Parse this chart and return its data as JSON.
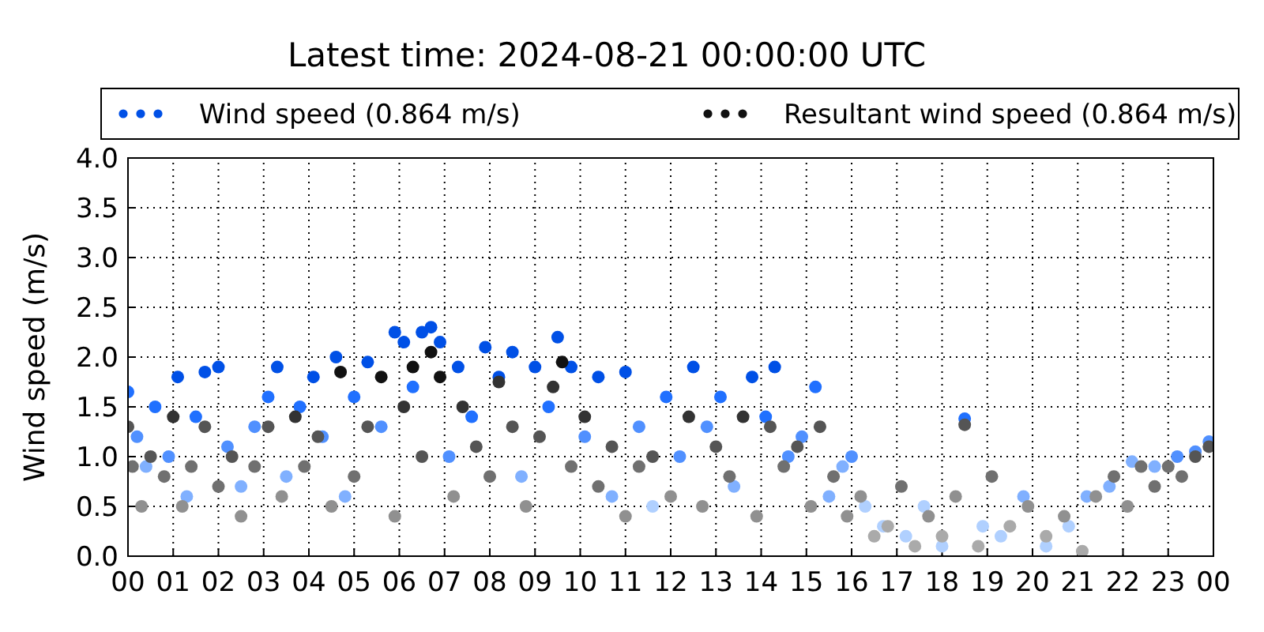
{
  "chart_data": {
    "type": "scatter",
    "title": "Latest time: 2024-08-21 00:00:00 UTC",
    "ylabel": "Wind speed (m/s)",
    "marker": "circle",
    "grid": true,
    "legend": "top",
    "xlim": [
      0,
      24
    ],
    "xticks": [
      {
        "value": 0,
        "label": "00"
      },
      {
        "value": 1,
        "label": "01"
      },
      {
        "value": 2,
        "label": "02"
      },
      {
        "value": 3,
        "label": "03"
      },
      {
        "value": 4,
        "label": "04"
      },
      {
        "value": 5,
        "label": "05"
      },
      {
        "value": 6,
        "label": "06"
      },
      {
        "value": 7,
        "label": "07"
      },
      {
        "value": 8,
        "label": "08"
      },
      {
        "value": 9,
        "label": "09"
      },
      {
        "value": 10,
        "label": "10"
      },
      {
        "value": 11,
        "label": "11"
      },
      {
        "value": 12,
        "label": "12"
      },
      {
        "value": 13,
        "label": "13"
      },
      {
        "value": 14,
        "label": "14"
      },
      {
        "value": 15,
        "label": "15"
      },
      {
        "value": 16,
        "label": "16"
      },
      {
        "value": 17,
        "label": "17"
      },
      {
        "value": 18,
        "label": "18"
      },
      {
        "value": 19,
        "label": "19"
      },
      {
        "value": 20,
        "label": "20"
      },
      {
        "value": 21,
        "label": "21"
      },
      {
        "value": 22,
        "label": "22"
      },
      {
        "value": 23,
        "label": "23"
      },
      {
        "value": 24,
        "label": "00"
      }
    ],
    "ylim": [
      0,
      4
    ],
    "yticks": [
      {
        "value": 0,
        "label": "0.0"
      },
      {
        "value": 0.5,
        "label": "0.5"
      },
      {
        "value": 1,
        "label": "1.0"
      },
      {
        "value": 1.5,
        "label": "1.5"
      },
      {
        "value": 2,
        "label": "2.0"
      },
      {
        "value": 2.5,
        "label": "2.5"
      },
      {
        "value": 3,
        "label": "3.0"
      },
      {
        "value": 3.5,
        "label": "3.5"
      },
      {
        "value": 4,
        "label": "4.0"
      }
    ],
    "series": [
      {
        "name": "Wind speed (0.864 m/s)",
        "color": "#0050e6",
        "x": [
          0.0,
          0.2,
          0.4,
          0.6,
          0.9,
          1.1,
          1.3,
          1.5,
          1.7,
          2.0,
          2.2,
          2.5,
          2.8,
          3.1,
          3.3,
          3.5,
          3.8,
          4.1,
          4.3,
          4.6,
          4.8,
          5.0,
          5.3,
          5.6,
          5.9,
          6.1,
          6.3,
          6.5,
          6.7,
          6.9,
          7.1,
          7.3,
          7.6,
          7.9,
          8.2,
          8.5,
          8.7,
          9.0,
          9.3,
          9.5,
          9.8,
          10.1,
          10.4,
          10.7,
          11.0,
          11.3,
          11.6,
          11.9,
          12.2,
          12.5,
          12.8,
          13.1,
          13.4,
          13.8,
          14.1,
          14.3,
          14.6,
          14.9,
          15.2,
          15.5,
          15.8,
          16.0,
          16.3,
          16.7,
          17.2,
          17.6,
          18.0,
          18.5,
          18.9,
          19.3,
          19.8,
          20.3,
          20.8,
          21.2,
          21.7,
          22.2,
          22.7,
          23.2,
          23.6,
          23.9
        ],
        "values": [
          1.65,
          1.2,
          0.9,
          1.5,
          1.0,
          1.8,
          0.6,
          1.4,
          1.85,
          1.9,
          1.1,
          0.7,
          1.3,
          1.6,
          1.9,
          0.8,
          1.5,
          1.8,
          1.2,
          2.0,
          0.6,
          1.6,
          1.95,
          1.3,
          2.25,
          2.15,
          1.7,
          2.25,
          2.3,
          2.15,
          1.0,
          1.9,
          1.4,
          2.1,
          1.8,
          2.05,
          0.8,
          1.9,
          1.5,
          2.2,
          1.9,
          1.2,
          1.8,
          0.6,
          1.85,
          1.3,
          0.5,
          1.6,
          1.0,
          1.9,
          1.3,
          1.6,
          0.7,
          1.8,
          1.4,
          1.9,
          1.0,
          1.2,
          1.7,
          0.6,
          0.9,
          1.0,
          0.5,
          0.3,
          0.2,
          0.5,
          0.1,
          1.38,
          0.3,
          0.2,
          0.6,
          0.1,
          0.3,
          0.6,
          0.7,
          0.95,
          0.9,
          1.0,
          1.05,
          1.15
        ],
        "colors": [
          "#2070ff",
          "#5090ff",
          "#80b0ff",
          "#2070ff",
          "#5090ff",
          "#0050e6",
          "#80b0ff",
          "#2070ff",
          "#0050e6",
          "#0050e6",
          "#5090ff",
          "#80b0ff",
          "#5090ff",
          "#2070ff",
          "#0050e6",
          "#80b0ff",
          "#2070ff",
          "#0050e6",
          "#5090ff",
          "#0050e6",
          "#80b0ff",
          "#2070ff",
          "#0050e6",
          "#5090ff",
          "#0050e6",
          "#0050e6",
          "#2070ff",
          "#0050e6",
          "#0050e6",
          "#0050e6",
          "#5090ff",
          "#0050e6",
          "#2070ff",
          "#0050e6",
          "#0050e6",
          "#0050e6",
          "#80b0ff",
          "#0050e6",
          "#2070ff",
          "#0050e6",
          "#0050e6",
          "#5090ff",
          "#0050e6",
          "#80b0ff",
          "#0050e6",
          "#5090ff",
          "#b0d0ff",
          "#2070ff",
          "#5090ff",
          "#0050e6",
          "#5090ff",
          "#2070ff",
          "#80b0ff",
          "#0050e6",
          "#2070ff",
          "#0050e6",
          "#5090ff",
          "#5090ff",
          "#2070ff",
          "#80b0ff",
          "#80b0ff",
          "#5090ff",
          "#b0d0ff",
          "#b0d0ff",
          "#b0d0ff",
          "#b0d0ff",
          "#b0d0ff",
          "#2070ff",
          "#b0d0ff",
          "#b0d0ff",
          "#80b0ff",
          "#b0d0ff",
          "#b0d0ff",
          "#80b0ff",
          "#80b0ff",
          "#80b0ff",
          "#80b0ff",
          "#5090ff",
          "#5090ff",
          "#5090ff"
        ]
      },
      {
        "name": "Resultant wind speed (0.864 m/s)",
        "color": "#111111",
        "x": [
          0.0,
          0.1,
          0.3,
          0.5,
          0.8,
          1.0,
          1.2,
          1.4,
          1.7,
          2.0,
          2.3,
          2.5,
          2.8,
          3.1,
          3.4,
          3.7,
          3.9,
          4.2,
          4.5,
          4.7,
          5.0,
          5.3,
          5.6,
          5.9,
          6.1,
          6.3,
          6.5,
          6.7,
          6.9,
          7.2,
          7.4,
          7.7,
          8.0,
          8.2,
          8.5,
          8.8,
          9.1,
          9.4,
          9.6,
          9.8,
          10.1,
          10.4,
          10.7,
          11.0,
          11.3,
          11.6,
          12.0,
          12.4,
          12.7,
          13.0,
          13.3,
          13.6,
          13.9,
          14.2,
          14.5,
          14.8,
          15.1,
          15.3,
          15.6,
          15.9,
          16.2,
          16.5,
          16.8,
          17.1,
          17.4,
          17.7,
          18.0,
          18.3,
          18.5,
          18.8,
          19.1,
          19.5,
          19.9,
          20.3,
          20.7,
          21.1,
          21.4,
          21.8,
          22.1,
          22.4,
          22.7,
          23.0,
          23.3,
          23.6,
          23.9
        ],
        "values": [
          1.3,
          0.9,
          0.5,
          1.0,
          0.8,
          1.4,
          0.5,
          0.9,
          1.3,
          0.7,
          1.0,
          0.4,
          0.9,
          1.3,
          0.6,
          1.4,
          0.9,
          1.2,
          0.5,
          1.85,
          0.8,
          1.3,
          1.8,
          0.4,
          1.5,
          1.9,
          1.0,
          2.05,
          1.8,
          0.6,
          1.5,
          1.1,
          0.8,
          1.75,
          1.3,
          0.5,
          1.2,
          1.7,
          1.95,
          0.9,
          1.4,
          0.7,
          1.1,
          0.4,
          0.9,
          1.0,
          0.6,
          1.4,
          0.5,
          1.1,
          0.8,
          1.4,
          0.4,
          1.3,
          0.9,
          1.1,
          0.5,
          1.3,
          0.8,
          0.4,
          0.6,
          0.2,
          0.3,
          0.7,
          0.1,
          0.4,
          0.2,
          0.6,
          1.32,
          0.1,
          0.8,
          0.3,
          0.5,
          0.2,
          0.4,
          0.05,
          0.6,
          0.8,
          0.5,
          0.9,
          0.7,
          0.9,
          0.8,
          1.0,
          1.1
        ],
        "colors": [
          "#555555",
          "#707070",
          "#909090",
          "#555555",
          "#707070",
          "#333333",
          "#909090",
          "#707070",
          "#555555",
          "#707070",
          "#555555",
          "#909090",
          "#707070",
          "#555555",
          "#909090",
          "#333333",
          "#707070",
          "#555555",
          "#909090",
          "#111111",
          "#707070",
          "#555555",
          "#111111",
          "#909090",
          "#333333",
          "#111111",
          "#555555",
          "#111111",
          "#111111",
          "#909090",
          "#333333",
          "#555555",
          "#707070",
          "#333333",
          "#555555",
          "#909090",
          "#555555",
          "#333333",
          "#111111",
          "#707070",
          "#333333",
          "#707070",
          "#555555",
          "#909090",
          "#707070",
          "#555555",
          "#909090",
          "#333333",
          "#909090",
          "#555555",
          "#707070",
          "#333333",
          "#909090",
          "#555555",
          "#707070",
          "#555555",
          "#909090",
          "#555555",
          "#707070",
          "#909090",
          "#909090",
          "#aaaaaa",
          "#aaaaaa",
          "#707070",
          "#aaaaaa",
          "#909090",
          "#aaaaaa",
          "#909090",
          "#555555",
          "#aaaaaa",
          "#707070",
          "#aaaaaa",
          "#909090",
          "#aaaaaa",
          "#909090",
          "#aaaaaa",
          "#909090",
          "#707070",
          "#909090",
          "#707070",
          "#707070",
          "#707070",
          "#707070",
          "#555555",
          "#555555"
        ]
      }
    ]
  }
}
